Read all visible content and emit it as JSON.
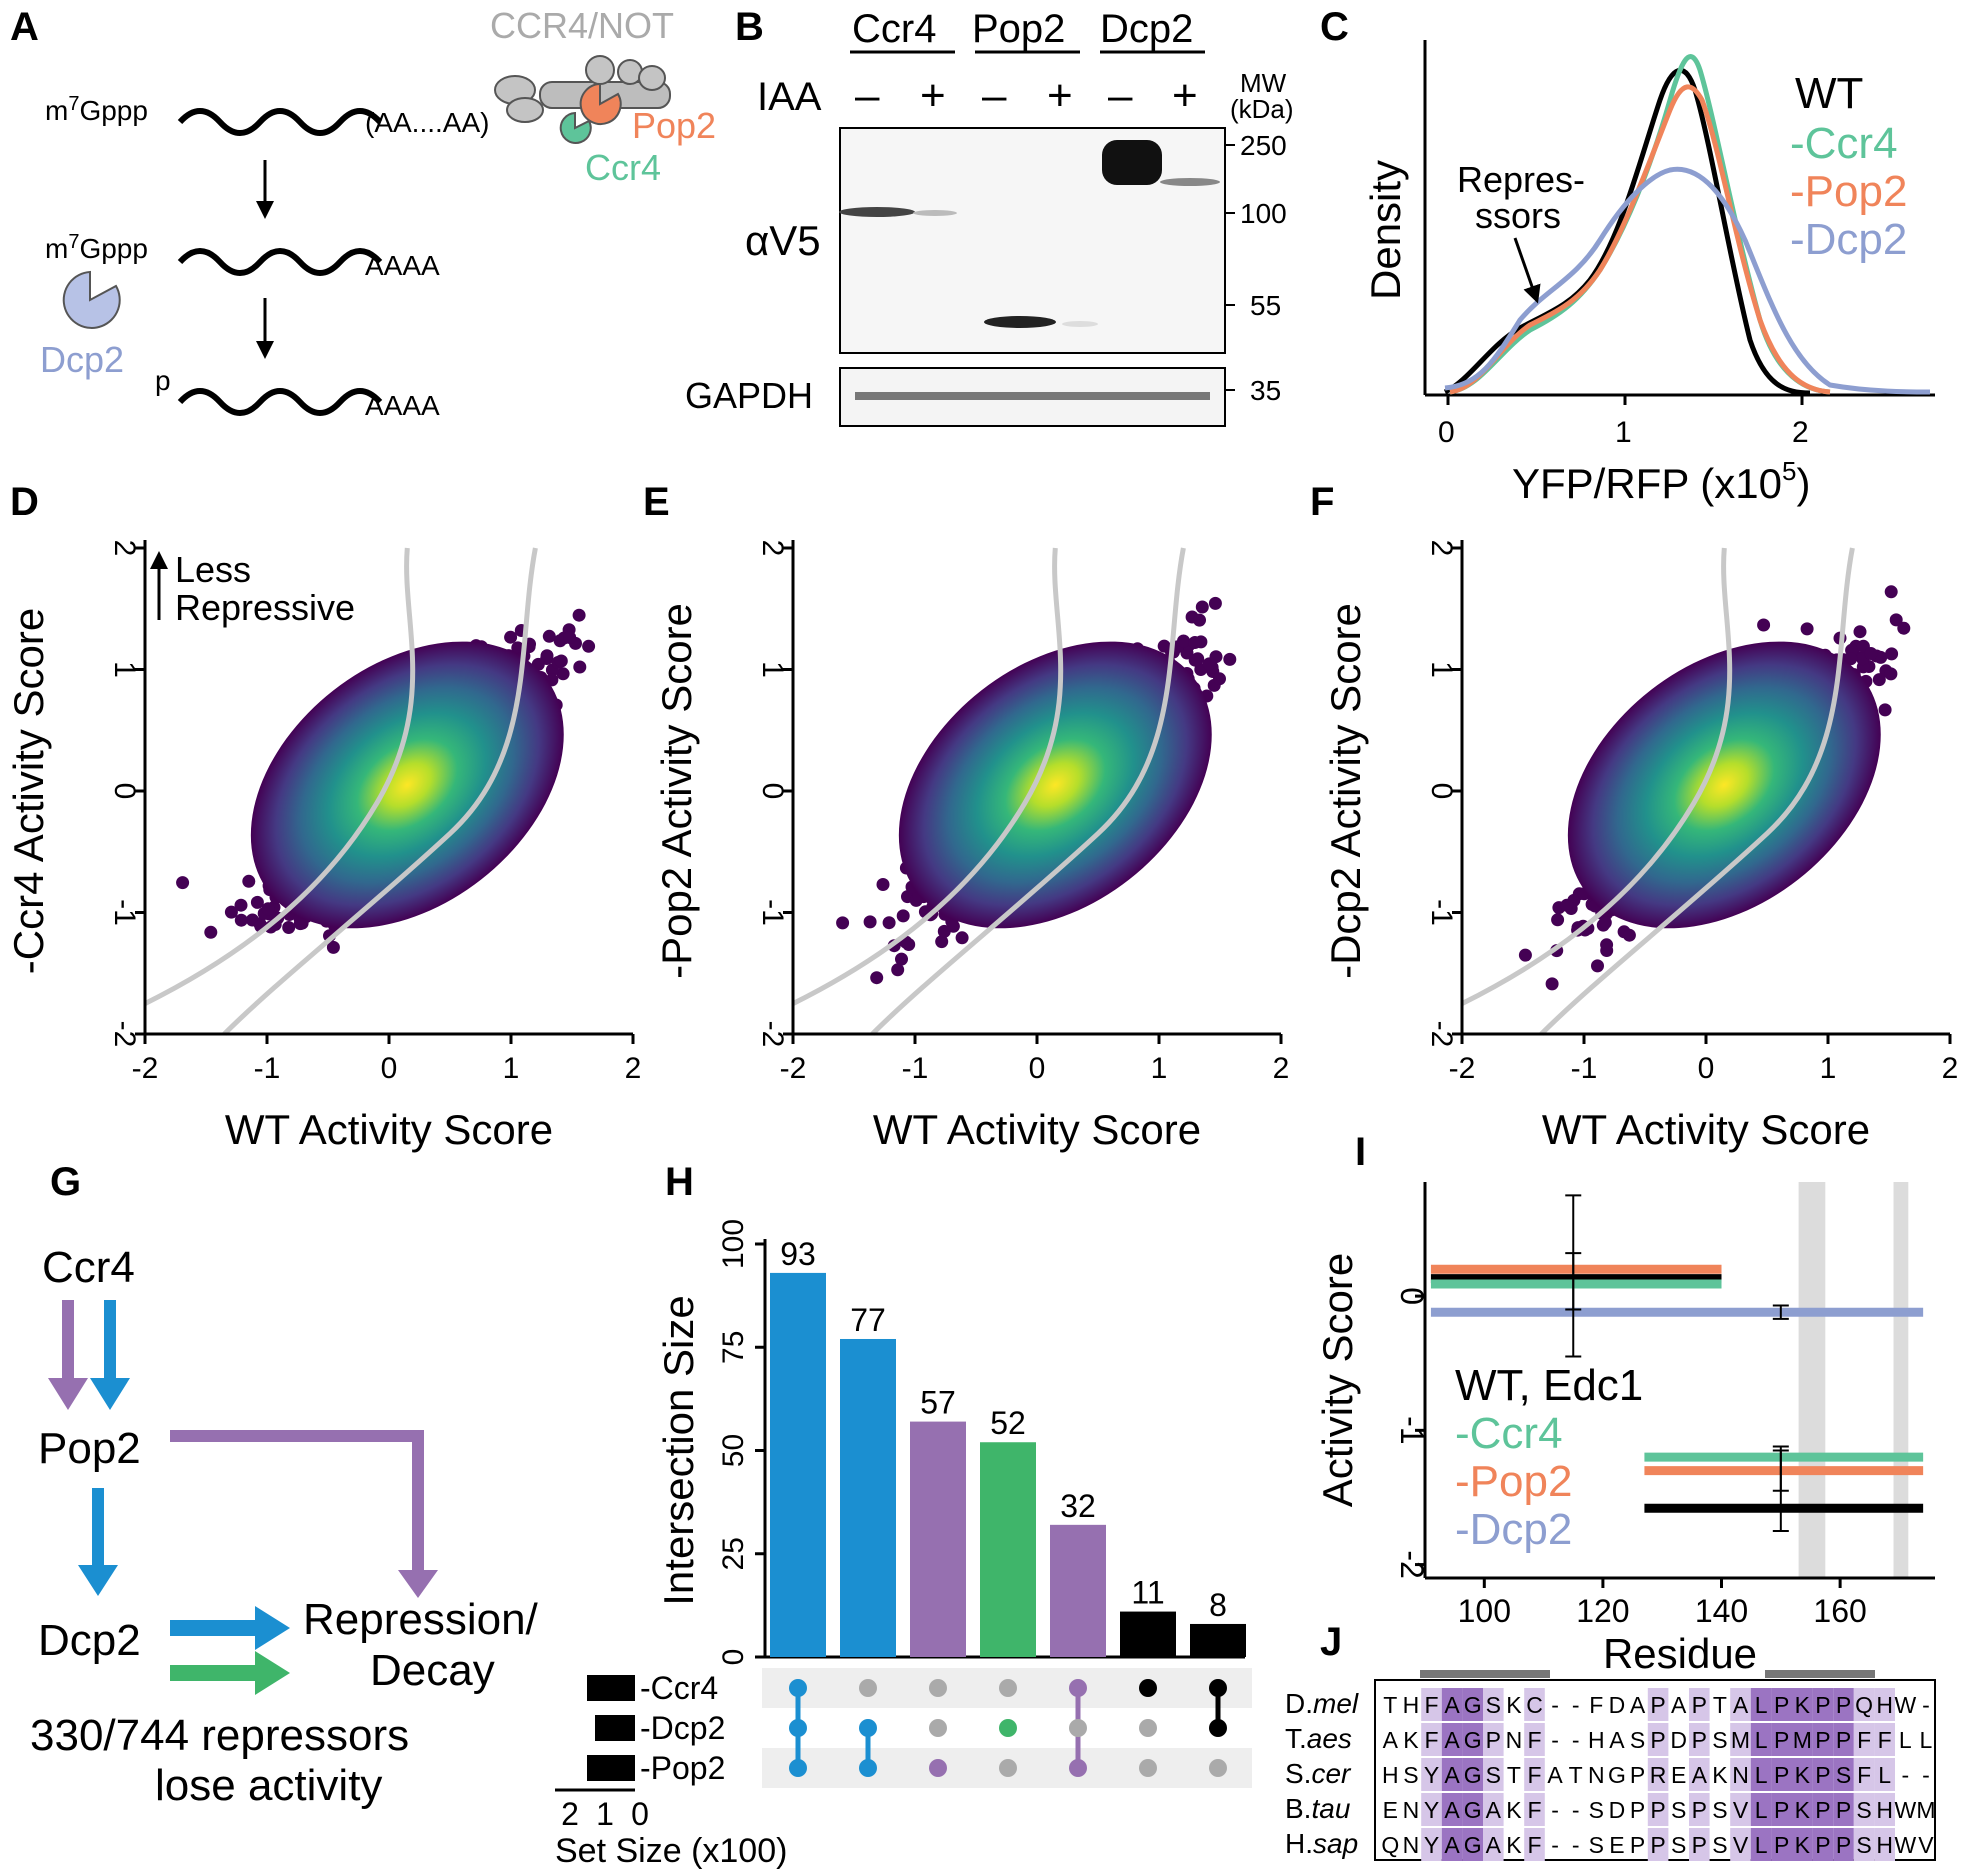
{
  "colors": {
    "wt": "#000000",
    "ccr4": "#5ec49a",
    "pop2": "#f0845a",
    "dcp2": "#8d9ed0",
    "blue": "#1b8fd1",
    "purple": "#9670b0",
    "green": "#3fb56a",
    "grey": "#aaaaaa",
    "curve": "#c8c8c8"
  },
  "panel_labels": [
    "A",
    "B",
    "C",
    "D",
    "E",
    "F",
    "G",
    "H",
    "I",
    "J"
  ],
  "panelA": {
    "complex": "CCR4/NOT",
    "pop2": "Pop2",
    "ccr4": "Ccr4",
    "dcp2": "Dcp2",
    "cap1": "m7Gppp",
    "cap1_sup": "7",
    "tail1": "(AA....AA)",
    "cap2": "m7Gppp",
    "tail2": "AAAA",
    "cap3": "p",
    "tail3": "AAAA",
    "cap_m": "m",
    "cap_rest": "Gppp"
  },
  "panelB": {
    "groups": [
      "Ccr4",
      "Pop2",
      "Dcp2"
    ],
    "iaa": "IAA",
    "minus": "–",
    "plus": "+",
    "mw_title1": "MW",
    "mw_title2": "(kDa)",
    "mw": [
      "250",
      "100",
      "55",
      "35"
    ],
    "blot1": "αV5",
    "blot2": "GAPDH"
  },
  "panelC": {
    "ylabel": "Density",
    "xlabel": "YFP/RFP (x10",
    "xlabel_sup": "5",
    "xlabel_end": ")",
    "xticks": [
      "0",
      "1",
      "2"
    ],
    "annotation1": "Repres-",
    "annotation2": "ssors",
    "legend": [
      "WT",
      "-Ccr4",
      "-Pop2",
      "-Dcp2"
    ]
  },
  "scatter_panels": [
    {
      "label": "D",
      "ylabel": "-Ccr4 Activity Score",
      "xlabel": "WT Activity Score"
    },
    {
      "label": "E",
      "ylabel": "-Pop2 Activity Score",
      "xlabel": "WT Activity Score"
    },
    {
      "label": "F",
      "ylabel": "-Dcp2 Activity Score",
      "xlabel": "WT Activity Score"
    }
  ],
  "scatter_ticks": [
    "-2",
    "-1",
    "0",
    "1",
    "2"
  ],
  "scatter_note": {
    "line1": "Less",
    "line2": "Repressive"
  },
  "panelG": {
    "ccr4": "Ccr4",
    "pop2": "Pop2",
    "dcp2": "Dcp2",
    "target1": "Repression/",
    "target2": "Decay",
    "summary1": "330/744 repressors",
    "summary2": "lose activity"
  },
  "chart_data": [
    {
      "type": "bar",
      "title": "",
      "ylabel": "Intersection Size",
      "ylim": [
        0,
        100
      ],
      "yticks": [
        "0",
        "25",
        "50",
        "75",
        "100"
      ],
      "values": [
        93,
        77,
        57,
        52,
        32,
        11,
        8
      ],
      "bar_colors": [
        "#1b8fd1",
        "#1b8fd1",
        "#9670b0",
        "#3fb56a",
        "#9670b0",
        "#000000",
        "#000000"
      ],
      "sets": [
        "-Ccr4",
        "-Dcp2",
        "-Pop2"
      ],
      "membership": [
        [
          1,
          1,
          1
        ],
        [
          0,
          1,
          1
        ],
        [
          0,
          0,
          1
        ],
        [
          0,
          1,
          0
        ],
        [
          1,
          0,
          1
        ],
        [
          1,
          0,
          0
        ],
        [
          1,
          1,
          0
        ]
      ],
      "set_size_label": "Set Size (x100)",
      "set_size_ticks": [
        "2",
        "1",
        "0"
      ],
      "set_sizes": [
        1.2,
        1.0,
        1.2
      ]
    },
    {
      "type": "line",
      "title": "",
      "ylabel": "Activity Score",
      "xlabel": "Residue",
      "xticks": [
        "100",
        "120",
        "140",
        "160"
      ],
      "yticks": [
        "0",
        "-1",
        "-2"
      ],
      "xlim": [
        90,
        176
      ],
      "ylim": [
        -2.1,
        0.85
      ],
      "legend": [
        "WT, Edc1",
        "-Ccr4",
        "-Pop2",
        "-Dcp2"
      ],
      "series": [
        {
          "name": "WT, Edc1",
          "segments": [
            {
              "x": [
                91,
                140
              ],
              "y": 0.13
            },
            {
              "x": 127,
              "x2": 174,
              "y": -1.58
            }
          ]
        },
        {
          "name": "-Ccr4",
          "segments": [
            {
              "x": [
                91,
                140
              ],
              "y": 0.09
            },
            {
              "x": 127,
              "x2": 174,
              "y": -1.2
            }
          ]
        },
        {
          "name": "-Pop2",
          "segments": [
            {
              "x": [
                91,
                140
              ],
              "y": 0.2
            },
            {
              "x": 127,
              "x2": 174,
              "y": -1.3
            }
          ]
        },
        {
          "name": "-Dcp2",
          "segments": [
            {
              "x": [
                91,
                174
              ],
              "y": -0.12
            }
          ]
        }
      ],
      "highlight_ranges": [
        [
          153,
          157.5
        ],
        [
          169,
          171.5
        ]
      ]
    }
  ],
  "panelJ": {
    "species": [
      {
        "italic_pre": "D.",
        "italic": "mel",
        "seq": "THFAGSKC--FDAPAPTALPKPPQHW-"
      },
      {
        "italic_pre": "T.",
        "italic": "aes",
        "seq": "AKFAGPNF--HASPDPSMLPMPPFFLL"
      },
      {
        "italic_pre": "S.",
        "italic": "cer",
        "seq": "HSYAGSTFATNGPREAKNLPKPSFL--"
      },
      {
        "italic_pre": "B.",
        "italic": "tau",
        "seq": "ENYAGAKF--SDPPSPSVLPKPPSHWM"
      },
      {
        "italic_pre": "H.",
        "italic": "sap",
        "seq": "QNYAGAKF--SEPPSPSVLPKPPSHWV"
      }
    ]
  }
}
